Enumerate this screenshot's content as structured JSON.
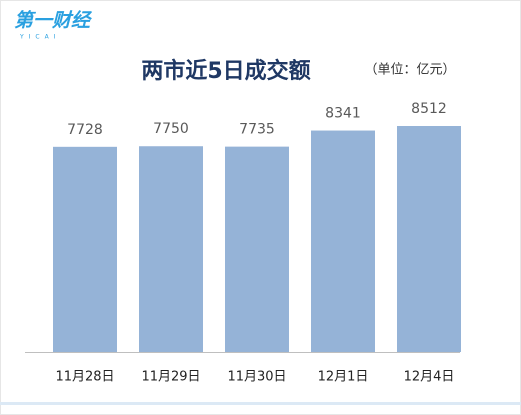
{
  "logo": {
    "name": "第一财经",
    "tagline": "YICAI"
  },
  "chart_data": {
    "type": "bar",
    "title": "两市近5日成交额",
    "subtitle": "（单位：亿元）",
    "categories": [
      "11月28日",
      "11月29日",
      "11月30日",
      "12月1日",
      "12月4日"
    ],
    "values": [
      7728,
      7750,
      7735,
      8341,
      8512
    ],
    "color": "#95b3d7"
  }
}
